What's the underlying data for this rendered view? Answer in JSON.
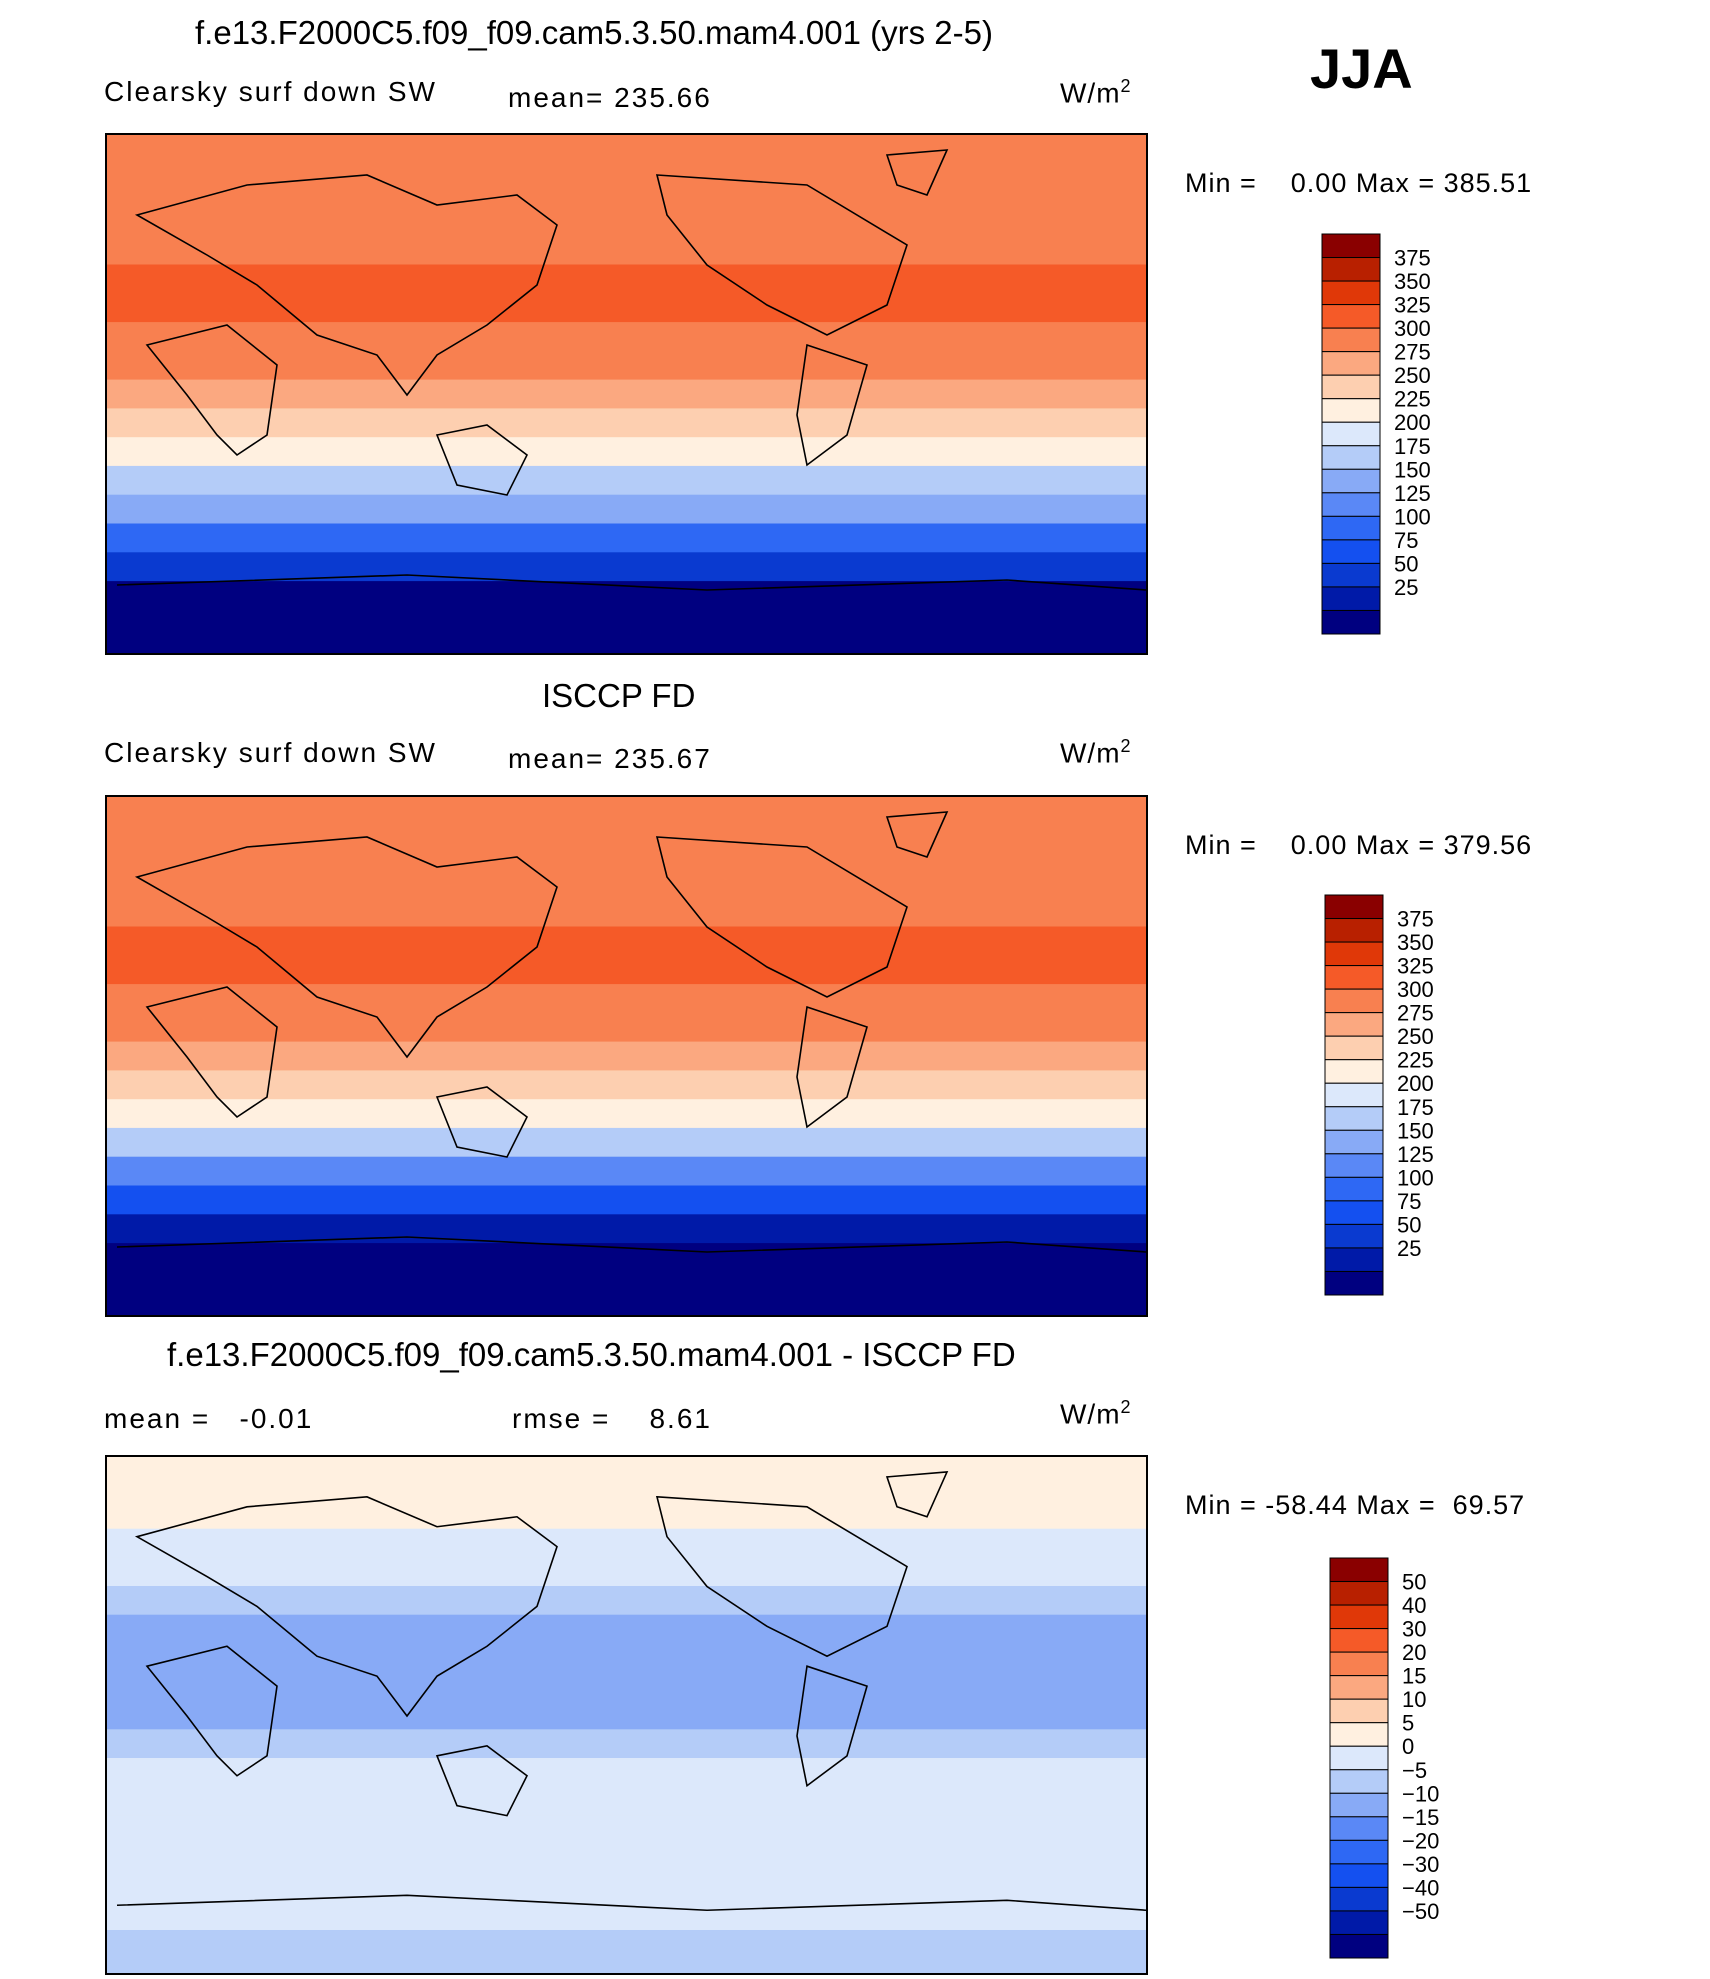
{
  "season": "JJA",
  "panels": [
    {
      "title": "f.e13.F2000C5.f09_f09.cam5.3.50.mam4.001 (yrs 2-5)",
      "left_label": "Clearsky surf down SW",
      "center_label": "mean= 235.66",
      "units": "W/m",
      "units_sup": "2",
      "min_max": "Min =    0.00 Max = 385.51"
    },
    {
      "title": "ISCCP FD",
      "left_label": "Clearsky surf down SW",
      "center_label": "mean= 235.67",
      "units": "W/m",
      "units_sup": "2",
      "min_max": "Min =    0.00 Max = 379.56"
    },
    {
      "title": "f.e13.F2000C5.f09_f09.cam5.3.50.mam4.001 - ISCCP FD",
      "left_label": "mean =   -0.01",
      "center_label": "rmse =    8.61",
      "units": "W/m",
      "units_sup": "2",
      "min_max": "Min = -58.44 Max =  69.57"
    }
  ],
  "chart_data": [
    {
      "type": "heatmap",
      "title": "f.e13.F2000C5.f09_f09.cam5.3.50.mam4.001 (yrs 2-5)",
      "variable": "Clearsky surf down SW",
      "units": "W/m2",
      "mean": 235.66,
      "min": 0.0,
      "max": 385.51,
      "colorbar_levels": [
        25,
        50,
        75,
        100,
        125,
        150,
        175,
        200,
        225,
        250,
        275,
        300,
        325,
        350,
        375
      ],
      "colorbar_labels": [
        "375",
        "350",
        "325",
        "300",
        "275",
        "250",
        "225",
        "200",
        "175",
        "150",
        "125",
        "100",
        "75",
        "50",
        "25"
      ],
      "colorbar_colors": [
        "#000080",
        "#001aa8",
        "#0a3ad0",
        "#1450f0",
        "#2e68f4",
        "#5a88f6",
        "#88aaf6",
        "#b4ccf8",
        "#dce8fb",
        "#fff0e0",
        "#fdcfb0",
        "#fba880",
        "#f88050",
        "#f55a28",
        "#e03808",
        "#b82000",
        "#8a0000"
      ],
      "zonal_bands_lat_value": [
        [
          80,
          300
        ],
        [
          70,
          305
        ],
        [
          60,
          310
        ],
        [
          50,
          318
        ],
        [
          40,
          325
        ],
        [
          30,
          330
        ],
        [
          20,
          320
        ],
        [
          10,
          302
        ],
        [
          0,
          285
        ],
        [
          -10,
          262
        ],
        [
          -20,
          232
        ],
        [
          -30,
          195
        ],
        [
          -40,
          150
        ],
        [
          -50,
          100
        ],
        [
          -60,
          50
        ],
        [
          -70,
          10
        ],
        [
          -80,
          0
        ],
        [
          -90,
          0
        ]
      ]
    },
    {
      "type": "heatmap",
      "title": "ISCCP FD",
      "variable": "Clearsky surf down SW",
      "units": "W/m2",
      "mean": 235.67,
      "min": 0.0,
      "max": 379.56,
      "colorbar_levels": [
        25,
        50,
        75,
        100,
        125,
        150,
        175,
        200,
        225,
        250,
        275,
        300,
        325,
        350,
        375
      ],
      "colorbar_labels": [
        "375",
        "350",
        "325",
        "300",
        "275",
        "250",
        "225",
        "200",
        "175",
        "150",
        "125",
        "100",
        "75",
        "50",
        "25"
      ],
      "colorbar_colors": [
        "#000080",
        "#001aa8",
        "#0a3ad0",
        "#1450f0",
        "#2e68f4",
        "#5a88f6",
        "#88aaf6",
        "#b4ccf8",
        "#dce8fb",
        "#fff0e0",
        "#fdcfb0",
        "#fba880",
        "#f88050",
        "#f55a28",
        "#e03808",
        "#b82000",
        "#8a0000"
      ],
      "zonal_bands_lat_value": [
        [
          80,
          300
        ],
        [
          70,
          305
        ],
        [
          60,
          310
        ],
        [
          50,
          318
        ],
        [
          40,
          325
        ],
        [
          30,
          330
        ],
        [
          20,
          320
        ],
        [
          10,
          300
        ],
        [
          0,
          283
        ],
        [
          -10,
          260
        ],
        [
          -20,
          230
        ],
        [
          -30,
          193
        ],
        [
          -40,
          148
        ],
        [
          -50,
          98
        ],
        [
          -60,
          48
        ],
        [
          -70,
          10
        ],
        [
          -80,
          0
        ],
        [
          -90,
          0
        ]
      ]
    },
    {
      "type": "heatmap",
      "title": "f.e13.F2000C5.f09_f09.cam5.3.50.mam4.001 - ISCCP FD",
      "units": "W/m2",
      "mean": -0.01,
      "rmse": 8.61,
      "min": -58.44,
      "max": 69.57,
      "colorbar_levels": [
        -50,
        -40,
        -30,
        -20,
        -15,
        -10,
        -5,
        0,
        5,
        10,
        15,
        20,
        30,
        40,
        50
      ],
      "colorbar_labels": [
        "50",
        "40",
        "30",
        "20",
        "15",
        "10",
        "5",
        "0",
        "−5",
        "−10",
        "−15",
        "−20",
        "−30",
        "−40",
        "−50"
      ],
      "colorbar_colors": [
        "#000080",
        "#001aa8",
        "#0a3ad0",
        "#1450f0",
        "#2e68f4",
        "#5a88f6",
        "#88aaf6",
        "#b4ccf8",
        "#dce8fb",
        "#fff0e0",
        "#fdcfb0",
        "#fba880",
        "#f88050",
        "#f55a28",
        "#e03808",
        "#b82000",
        "#8a0000"
      ],
      "zonal_bands_lat_value": [
        [
          80,
          8
        ],
        [
          70,
          6
        ],
        [
          60,
          4
        ],
        [
          50,
          2
        ],
        [
          40,
          -4
        ],
        [
          30,
          -6
        ],
        [
          20,
          -8
        ],
        [
          10,
          -10
        ],
        [
          0,
          -6
        ],
        [
          -10,
          -4
        ],
        [
          -20,
          2
        ],
        [
          -30,
          1
        ],
        [
          -40,
          0
        ],
        [
          -50,
          1
        ],
        [
          -60,
          1
        ],
        [
          -70,
          0
        ],
        [
          -80,
          -2
        ],
        [
          -90,
          -2
        ]
      ]
    }
  ]
}
